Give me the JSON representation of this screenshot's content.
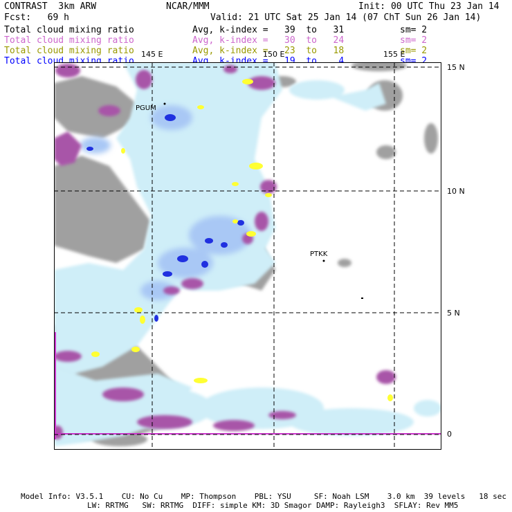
{
  "header": {
    "model": "CONTRAST  3km ARW",
    "org": "NCAR/MMM",
    "init": "Init: 00 UTC Thu 23 Jan 14",
    "fcst": "Fcst:   69 h",
    "valid": "Valid: 21 UTC Sat 25 Jan 14 (07 ChT Sun 26 Jan 14)"
  },
  "legend": [
    {
      "field": "Total cloud mixing ratio",
      "range": "Avg, k-index =   39  to   31",
      "sm": "sm= 2",
      "color": "#000000"
    },
    {
      "field": "Total cloud mixing ratio",
      "range": "Avg, k-index =   30  to   24",
      "sm": "sm= 2",
      "color": "#cc66cc"
    },
    {
      "field": "Total cloud mixing ratio",
      "range": "Avg, k-index =   23  to   18",
      "sm": "sm= 2",
      "color": "#999900"
    },
    {
      "field": "Total cloud mixing ratio",
      "range": "Avg, k-index =   19  to    4",
      "sm": "sm= 2",
      "color": "#0000ff"
    }
  ],
  "map": {
    "lon_labels": [
      "145 E",
      "150 E",
      "155 E"
    ],
    "lat_labels": [
      "15 N",
      "10 N",
      "5 N",
      "0"
    ],
    "stations": [
      "PGUM",
      "PTKK"
    ],
    "colors": {
      "low_cloud_gray": "#a0a0a0",
      "light_blue": "#cfeef8",
      "mid_blue": "#a9c8f5",
      "deep_blue": "#2030e0",
      "magenta": "#a855a8",
      "yellow": "#ffff33"
    }
  },
  "footer": {
    "line1": "Model Info: V3.5.1    CU: No Cu    MP: Thompson    PBL: YSU     SF: Noah LSM    3.0 km  39 levels   18 sec",
    "line2": "LW: RRTMG   SW: RRTMG  DIFF: simple KM: 3D Smagor DAMP: Rayleigh3  SFLAY: Rev MM5"
  }
}
